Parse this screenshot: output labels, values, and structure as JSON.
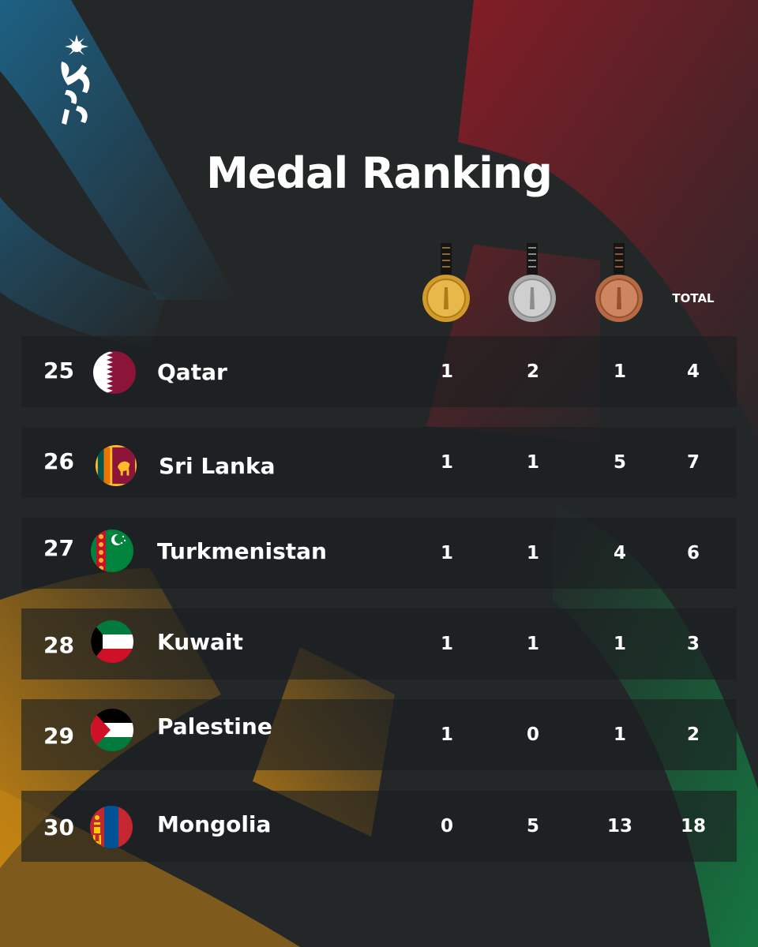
{
  "title": "Medal Ranking",
  "header": {
    "gold_icon": "gold-medal",
    "silver_icon": "silver-medal",
    "bronze_icon": "bronze-medal",
    "total_label": "TOTAL"
  },
  "colors": {
    "background": "#242728",
    "blue": "#1a5f86",
    "red": "#8d1a24",
    "green": "#16603a",
    "gold": "#c98a16"
  },
  "rows": [
    {
      "rank": "25",
      "country": "Qatar",
      "flag": "qatar-flag",
      "gold": "1",
      "silver": "2",
      "bronze": "1",
      "total": "4"
    },
    {
      "rank": "26",
      "country": "Sri Lanka",
      "flag": "sri-lanka-flag",
      "gold": "1",
      "silver": "1",
      "bronze": "5",
      "total": "7"
    },
    {
      "rank": "27",
      "country": "Turkmenistan",
      "flag": "turkmenistan-flag",
      "gold": "1",
      "silver": "1",
      "bronze": "4",
      "total": "6"
    },
    {
      "rank": "28",
      "country": "Kuwait",
      "flag": "kuwait-flag",
      "gold": "1",
      "silver": "1",
      "bronze": "1",
      "total": "3"
    },
    {
      "rank": "29",
      "country": "Palestine",
      "flag": "palestine-flag",
      "gold": "1",
      "silver": "0",
      "bronze": "1",
      "total": "2"
    },
    {
      "rank": "30",
      "country": "Mongolia",
      "flag": "mongolia-flag",
      "gold": "0",
      "silver": "5",
      "bronze": "13",
      "total": "18"
    }
  ]
}
